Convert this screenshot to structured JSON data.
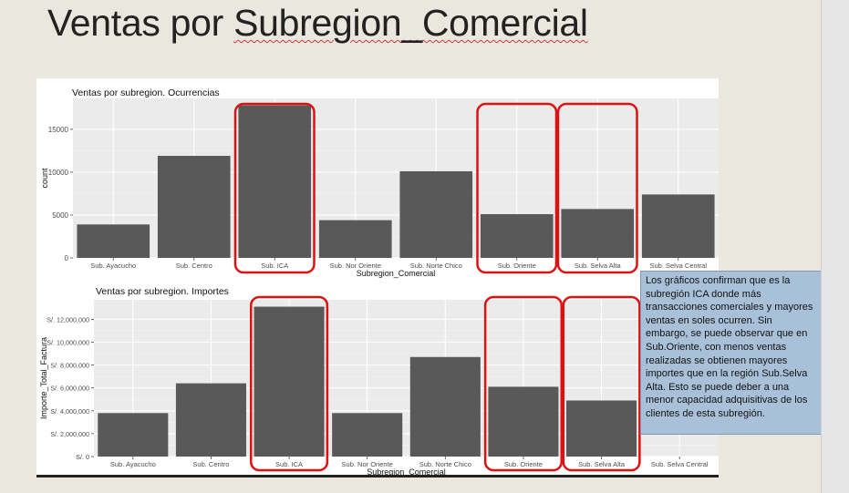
{
  "slide": {
    "title_prefix": "Ventas por ",
    "title_word": "Subregion_Comercial"
  },
  "note": "Los gráficos confirman que es la subregión ICA donde más transacciones comerciales y mayores ventas en soles ocurren. Sin embargo, se puede observar que en Sub.Oriente, con menos ventas realizadas se obtienen mayores importes que en la región Sub.Selva Alta. Esto se puede deber a una menor capacidad adquisitivas de los clientes de esta subregión.",
  "colors": {
    "bar": "#595959",
    "panel": "#ebebeb",
    "highlight": "#e01010"
  },
  "chart_data": [
    {
      "type": "bar",
      "title": "Ventas por subregion. Ocurrencias",
      "xlabel": "Subregion_Comercial",
      "ylabel": "count",
      "categories": [
        "Sub. Ayacucho",
        "Sub. Centro",
        "Sub. ICA",
        "Sub. Nor Oriente",
        "Sub. Norte Chico",
        "Sub. Oriente",
        "Sub. Selva Alta",
        "Sub. Selva Central"
      ],
      "values": [
        3900,
        11900,
        17800,
        4400,
        10100,
        5100,
        5700,
        7400
      ],
      "ylim": [
        0,
        18600
      ],
      "yticks": [
        0,
        5000,
        10000,
        15000
      ],
      "ytick_labels": [
        "0",
        "5000",
        "10000",
        "15000"
      ],
      "highlighted": [
        "Sub. ICA",
        "Sub. Oriente",
        "Sub. Selva Alta"
      ],
      "grid": true
    },
    {
      "type": "bar",
      "title": "Ventas por subregion. Importes",
      "xlabel": "Subregion_Comercial",
      "ylabel": "Importe_Total_Factura",
      "categories": [
        "Sub. Ayacucho",
        "Sub. Centro",
        "Sub. ICA",
        "Sub. Nor Oriente",
        "Sub. Norte Chico",
        "Sub. Oriente",
        "Sub. Selva Alta",
        "Sub. Selva Central"
      ],
      "values": [
        3800000,
        6400000,
        13100000,
        3800000,
        8700000,
        6100000,
        4900000,
        0
      ],
      "ylim": [
        0,
        13700000
      ],
      "yticks": [
        0,
        2000000,
        4000000,
        6000000,
        8000000,
        10000000,
        12000000
      ],
      "ytick_labels": [
        "S/. 0",
        "S/. 2,000,000",
        "S/. 4,000,000",
        "S/. 6,000,000",
        "S/. 8,000,000",
        "S/. 10,000,000",
        "S/. 12,000,000"
      ],
      "highlighted": [
        "Sub. ICA",
        "Sub. Oriente",
        "Sub. Selva Alta"
      ],
      "grid": true
    }
  ]
}
